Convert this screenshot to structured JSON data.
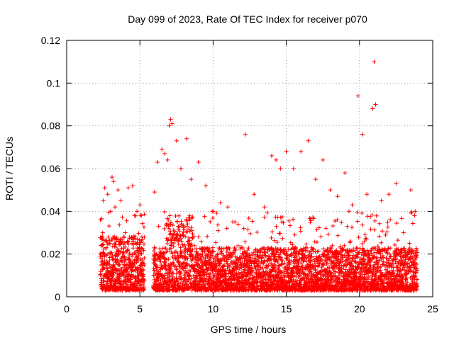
{
  "chart_data": {
    "type": "scatter",
    "title": "Day 099 of 2023, Rate Of TEC Index for receiver p070",
    "xlabel": "GPS time / hours",
    "ylabel": "ROTI / TECUs",
    "xlim": [
      0,
      25
    ],
    "ylim": [
      0,
      0.12
    ],
    "xticks": [
      0,
      5,
      10,
      15,
      20,
      25
    ],
    "xtick_labels": [
      "0",
      "5",
      "10",
      "15",
      "20",
      "25"
    ],
    "yticks": [
      0,
      0.02,
      0.04,
      0.06,
      0.08,
      0.1,
      0.12
    ],
    "ytick_labels": [
      "0",
      "0.02",
      "0.04",
      "0.06",
      "0.08",
      "0.1",
      "0.12"
    ],
    "grid": true,
    "marker": "+",
    "marker_color": "#ff0000",
    "data_gaps_hours": [
      [
        0,
        2.2
      ],
      [
        5.3,
        5.9
      ],
      [
        24.0,
        25
      ]
    ],
    "series": [
      {
        "name": "ROTI",
        "x": [
          2.3,
          2.5,
          2.6,
          2.8,
          3.0,
          3.1,
          3.2,
          3.3,
          3.5,
          3.7,
          4.0,
          4.2,
          4.5,
          4.8,
          5.0,
          5.1,
          6.0,
          6.2,
          6.5,
          6.7,
          6.9,
          7.0,
          7.1,
          7.2,
          7.5,
          7.8,
          8.2,
          8.5,
          9.0,
          9.5,
          10.0,
          10.5,
          11.0,
          11.5,
          12.2,
          12.8,
          13.5,
          14.0,
          14.3,
          14.6,
          15.0,
          15.5,
          16.0,
          16.5,
          17.0,
          17.5,
          18.0,
          18.5,
          19.0,
          19.5,
          19.9,
          20.2,
          20.5,
          20.9,
          21.0,
          21.1,
          21.5,
          22.0,
          22.5,
          23.0,
          23.5,
          23.8
        ],
        "y": [
          0.036,
          0.045,
          0.051,
          0.048,
          0.04,
          0.056,
          0.054,
          0.042,
          0.05,
          0.045,
          0.03,
          0.051,
          0.052,
          0.04,
          0.043,
          0.038,
          0.049,
          0.063,
          0.069,
          0.067,
          0.064,
          0.08,
          0.083,
          0.081,
          0.073,
          0.06,
          0.074,
          0.055,
          0.063,
          0.052,
          0.04,
          0.044,
          0.042,
          0.035,
          0.076,
          0.048,
          0.042,
          0.066,
          0.064,
          0.06,
          0.068,
          0.06,
          0.068,
          0.073,
          0.055,
          0.064,
          0.05,
          0.047,
          0.058,
          0.043,
          0.094,
          0.076,
          0.048,
          0.088,
          0.11,
          0.09,
          0.045,
          0.048,
          0.053,
          0.03,
          0.05,
          0.04
        ]
      }
    ]
  }
}
